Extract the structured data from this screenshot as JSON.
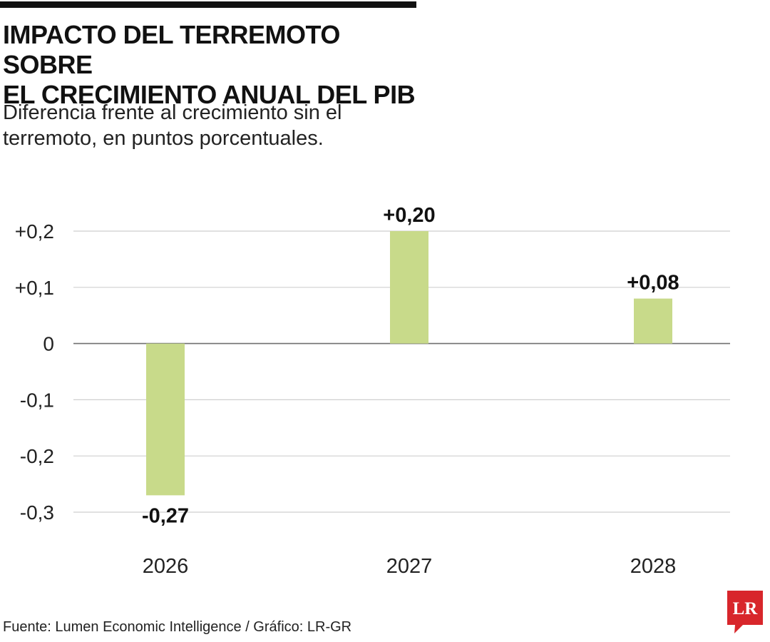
{
  "header": {
    "title_lines": [
      "IMPACTO DEL TERREMOTO SOBRE",
      "EL CRECIMIENTO ANUAL DEL PIB"
    ],
    "subtitle_lines": [
      "Diferencia frente al crecimiento sin el",
      "terremoto, en puntos porcentuales."
    ]
  },
  "chart_data": {
    "type": "bar",
    "title": "IMPACTO DEL TERREMOTO SOBRE EL CRECIMIENTO ANUAL DEL PIB",
    "subtitle": "Diferencia frente al crecimiento sin el terremoto, en puntos porcentuales.",
    "categories": [
      "2026",
      "2027",
      "2028"
    ],
    "values": [
      -0.27,
      0.2,
      0.08
    ],
    "data_labels": [
      "-0,27",
      "+0,20",
      "+0,08"
    ],
    "yticks": [
      0.2,
      0.1,
      0,
      -0.1,
      -0.2,
      -0.3
    ],
    "ytick_labels": [
      "+0,2",
      "+0,1",
      "0",
      "-0,1",
      "-0,2",
      "-0,3"
    ],
    "ylim": [
      -0.3,
      0.2
    ],
    "grid": true,
    "legend": "none",
    "bar_color": "#c8da8a",
    "xlabel": "",
    "ylabel": ""
  },
  "footer": {
    "source": "Fuente: Lumen Economic Intelligence / Gráfico: LR-GR",
    "logo_text": "LR",
    "logo_color": "#d8262b"
  }
}
